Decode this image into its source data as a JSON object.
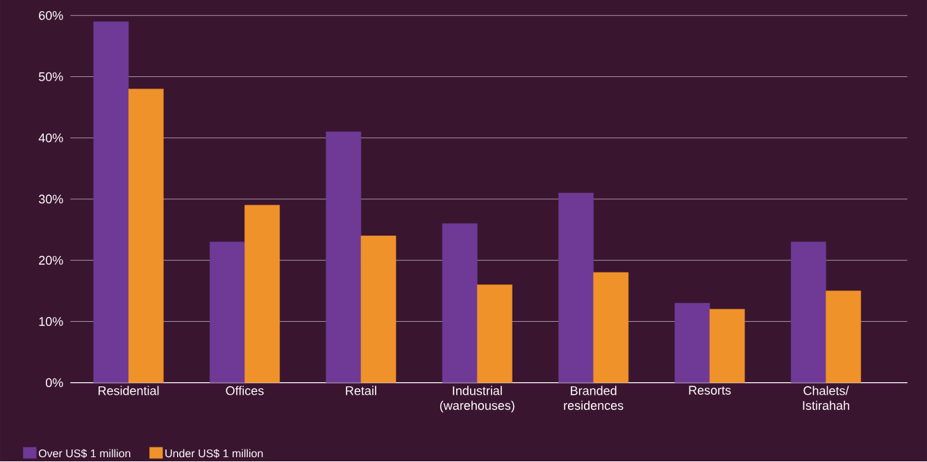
{
  "chart_data": {
    "type": "bar",
    "categories": [
      "Residential",
      "Offices",
      "Retail",
      "Industrial (warehouses)",
      "Branded residences",
      "Resorts",
      "Chalets/ Istirahah"
    ],
    "series": [
      {
        "name": "Over US$ 1 million",
        "color": "#6e3a96",
        "values": [
          59,
          23,
          41,
          26,
          31,
          13,
          23
        ]
      },
      {
        "name": "Under US$ 1 million",
        "color": "#f0922a",
        "values": [
          48,
          29,
          24,
          16,
          18,
          12,
          15
        ]
      }
    ],
    "ylim": [
      0,
      60
    ],
    "yticks": [
      {
        "value": 0,
        "label": "0%"
      },
      {
        "value": 10,
        "label": "10%"
      },
      {
        "value": 20,
        "label": "20%"
      },
      {
        "value": 30,
        "label": "30%"
      },
      {
        "value": 40,
        "label": "40%"
      },
      {
        "value": 50,
        "label": "50%"
      },
      {
        "value": 60,
        "label": "60%"
      }
    ],
    "grid": "y",
    "legend": "bottom left"
  }
}
